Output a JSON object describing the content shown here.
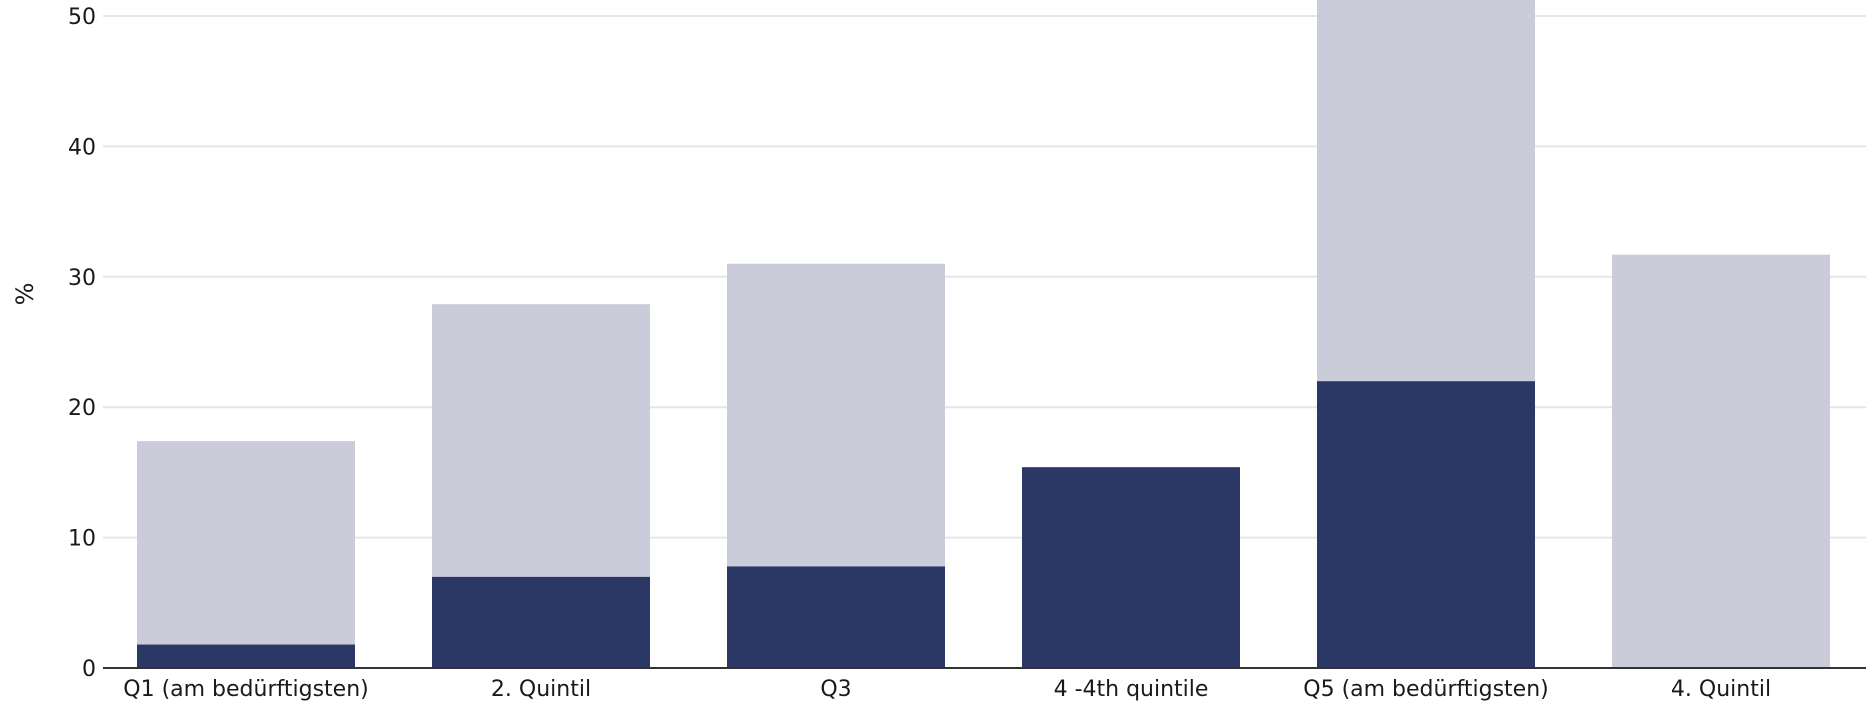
{
  "chart_data": {
    "type": "bar",
    "stacked": true,
    "categories": [
      "Q1 (am bedürftigsten)",
      "2. Quintil",
      "Q3",
      "4 -4th quintile",
      "Q5 (am bedürftigsten)",
      "4. Quintil"
    ],
    "series": [
      {
        "color": "#2b3764",
        "values": [
          1.8,
          7.0,
          7.8,
          15.4,
          22.0,
          0
        ]
      },
      {
        "color": "#cbccd9",
        "values": [
          15.6,
          20.9,
          23.2,
          0,
          31.0,
          31.7
        ]
      }
    ],
    "ylabel": "%",
    "ylim": [
      0,
      50
    ],
    "yticks": [
      0,
      10,
      20,
      30,
      40,
      50
    ],
    "grid": true,
    "gridColor": "#e6e6e6",
    "axisColor": "#333333"
  }
}
